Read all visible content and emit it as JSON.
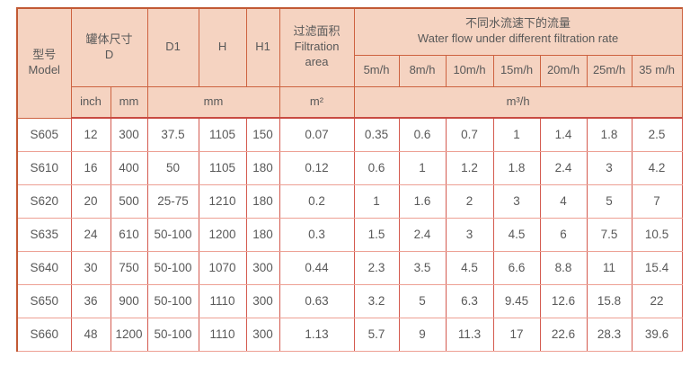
{
  "theme": {
    "header_bg": "#f5d3c1",
    "header_border": "#cd6240",
    "outer_border": "#c25a34",
    "header_separator": "#c94b42",
    "data_border_vertical": "#d45a4f",
    "data_border_horizontal": "#eda094",
    "text": "#595959",
    "page_bg": "#ffffff"
  },
  "table": {
    "header": {
      "model": "型号\nModel",
      "tank_size": "罐体尺寸\nD",
      "d1": "D1",
      "h": "H",
      "h1": "H1",
      "filtration": "过滤面积\nFiltration\narea",
      "flow_title": "不同水流速下的流量\nWater flow under different filtration rate",
      "flow_rates": [
        "5m/h",
        "8m/h",
        "10m/h",
        "15m/h",
        "20m/h",
        "25m/h",
        "35 m/h"
      ],
      "unit_inch": "inch",
      "unit_mm_d": "mm",
      "unit_mm_dims": "mm",
      "unit_area": "m²",
      "unit_flow": "m³/h"
    },
    "column_keys": [
      "model",
      "d-inch",
      "d-mm",
      "d1",
      "h",
      "h1",
      "filtration-area",
      "flow-5",
      "flow-8",
      "flow-10",
      "flow-15",
      "flow-20",
      "flow-25",
      "flow-35"
    ],
    "rows": [
      {
        "values": [
          "S605",
          "12",
          "300",
          "37.5",
          "1105",
          "150",
          "0.07",
          "0.35",
          "0.6",
          "0.7",
          "1",
          "1.4",
          "1.8",
          "2.5"
        ]
      },
      {
        "values": [
          "S610",
          "16",
          "400",
          "50",
          "1105",
          "180",
          "0.12",
          "0.6",
          "1",
          "1.2",
          "1.8",
          "2.4",
          "3",
          "4.2"
        ]
      },
      {
        "values": [
          "S620",
          "20",
          "500",
          "25-75",
          "1210",
          "180",
          "0.2",
          "1",
          "1.6",
          "2",
          "3",
          "4",
          "5",
          "7"
        ]
      },
      {
        "values": [
          "S635",
          "24",
          "610",
          "50-100",
          "1200",
          "180",
          "0.3",
          "1.5",
          "2.4",
          "3",
          "4.5",
          "6",
          "7.5",
          "10.5"
        ]
      },
      {
        "values": [
          "S640",
          "30",
          "750",
          "50-100",
          "1070",
          "300",
          "0.44",
          "2.3",
          "3.5",
          "4.5",
          "6.6",
          "8.8",
          "11",
          "15.4"
        ]
      },
      {
        "values": [
          "S650",
          "36",
          "900",
          "50-100",
          "1110",
          "300",
          "0.63",
          "3.2",
          "5",
          "6.3",
          "9.45",
          "12.6",
          "15.8",
          "22"
        ]
      },
      {
        "values": [
          "S660",
          "48",
          "1200",
          "50-100",
          "1110",
          "300",
          "1.13",
          "5.7",
          "9",
          "11.3",
          "17",
          "22.6",
          "28.3",
          "39.6"
        ]
      }
    ]
  }
}
